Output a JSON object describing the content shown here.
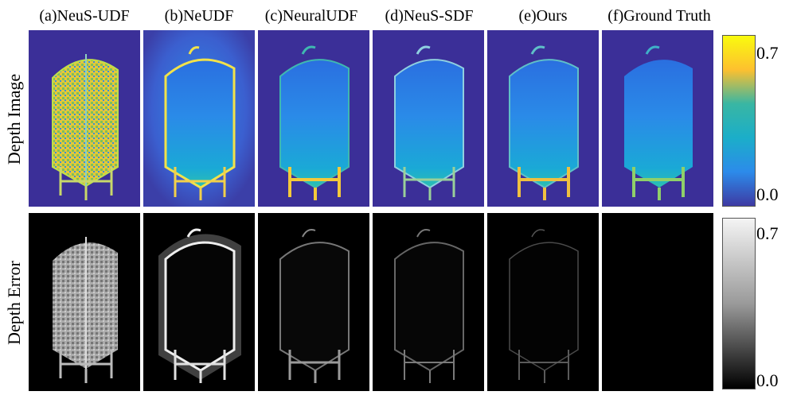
{
  "columns": [
    {
      "label": "(a)NeuS-UDF"
    },
    {
      "label": "(b)NeUDF"
    },
    {
      "label": "(c)NeuralUDF"
    },
    {
      "label": "(d)NeuS-SDF"
    },
    {
      "label": "(e)Ours"
    },
    {
      "label": "(f)Ground Truth"
    }
  ],
  "rows": [
    {
      "label": "Depth Image"
    },
    {
      "label": "Depth Error"
    }
  ],
  "colorbars": {
    "depth": {
      "max_label": "0.7",
      "min_label": "0.0",
      "colormap": "parula",
      "colors": [
        "#f9fb0e",
        "#fdc02f",
        "#39b6a3",
        "#1baec9",
        "#2c8bea",
        "#3e3aa3"
      ]
    },
    "error": {
      "max_label": "0.7",
      "min_label": "0.0",
      "colormap": "gray",
      "colors": [
        "#f4f4f4",
        "#9a9a9a",
        "#000000"
      ]
    }
  },
  "panel_colors": {
    "depth_background": "#3b2f98",
    "error_background": "#000000"
  }
}
